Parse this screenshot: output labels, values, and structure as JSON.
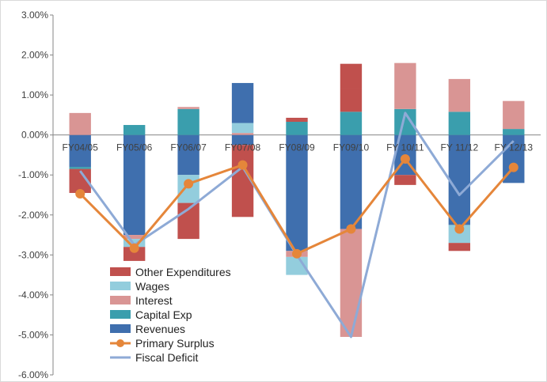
{
  "chart_data": {
    "type": "bar",
    "categories": [
      "FY04/05",
      "FY05/06",
      "FY06/07",
      "FY07/08",
      "FY08/09",
      "FY09/10",
      "FY 10/11",
      "FY 11/12",
      "FY 12/13"
    ],
    "ylim": [
      -6,
      3
    ],
    "yticks": [
      -6,
      -5,
      -4,
      -3,
      -2,
      -1,
      0,
      1,
      2,
      3
    ],
    "ytick_labels": [
      "-6.00%",
      "-5.00%",
      "-4.00%",
      "-3.00%",
      "-2.00%",
      "-1.00%",
      "0.00%",
      "1.00%",
      "2.00%",
      "3.00%"
    ],
    "grid": false,
    "legend_position": "bottom-left",
    "stack_series": [
      {
        "name": "Revenues",
        "color": "#3f6fae",
        "values": [
          -0.8,
          -2.5,
          -1.0,
          -0.25,
          -2.9,
          -2.35,
          -1.0,
          -2.25,
          -1.2
        ]
      },
      {
        "name": "Capital Exp",
        "color": "#3a9ead",
        "values": [
          -0.05,
          0.25,
          0.65,
          0.0,
          0.33,
          0.58,
          0.65,
          0.58,
          0.15
        ]
      },
      {
        "name": "Interest",
        "color": "#d99594",
        "values": [
          0.55,
          -0.1,
          0.05,
          0.05,
          -0.15,
          -2.7,
          1.15,
          0.82,
          0.7
        ]
      },
      {
        "name": "Wages",
        "color": "#93cddd",
        "values": [
          0.0,
          -0.2,
          -0.7,
          0.25,
          -0.45,
          0.0,
          0.0,
          -0.45,
          0.0
        ]
      },
      {
        "name": "Other Expenditures",
        "color": "#c0504d",
        "values": [
          -0.6,
          -0.35,
          -0.9,
          -1.8,
          0.05,
          0.6,
          -0.25,
          -0.2,
          0.0
        ]
      }
    ],
    "positive_values": {
      "Revenues": [
        0,
        0,
        0,
        1.0,
        0,
        0,
        0,
        0,
        0
      ],
      "Other Expenditures": [
        0,
        0,
        0,
        0,
        0.05,
        0.6,
        0,
        0,
        0
      ]
    },
    "line_series": [
      {
        "name": "Primary Surplus",
        "color": "#e5863a",
        "values": [
          -1.47,
          -2.83,
          -1.22,
          -0.75,
          -2.97,
          -2.35,
          -0.6,
          -2.35,
          -0.81
        ],
        "marker": "circle"
      },
      {
        "name": "Fiscal Deficit",
        "color": "#8eaad6",
        "values": [
          -0.9,
          -2.75,
          -1.85,
          -0.8,
          -3.0,
          -5.05,
          0.55,
          -1.5,
          -0.15
        ],
        "marker": "none"
      }
    ],
    "legend_order": [
      "Other Expenditures",
      "Wages",
      "Interest",
      "Capital Exp",
      "Revenues",
      "Primary Surplus",
      "Fiscal Deficit"
    ]
  }
}
